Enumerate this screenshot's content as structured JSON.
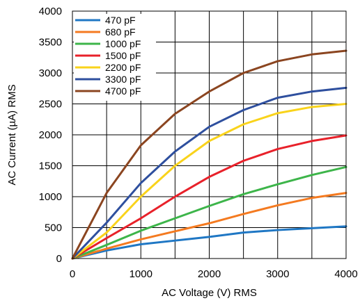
{
  "chart_data": {
    "type": "line",
    "title": "",
    "xlabel": "AC Voltage (V) RMS",
    "ylabel": "AC Current (µA) RMS",
    "xlim": [
      0,
      4000
    ],
    "ylim": [
      0,
      4000
    ],
    "xticks": [
      0,
      1000,
      2000,
      3000,
      4000
    ],
    "yticks": [
      0,
      500,
      1000,
      1500,
      2000,
      2500,
      3000,
      3500,
      4000
    ],
    "grid": true,
    "legend_position": "top-left",
    "x": [
      0,
      500,
      1000,
      1500,
      2000,
      2500,
      3000,
      3500,
      4000
    ],
    "series": [
      {
        "name": "470 pF",
        "color": "#1f77c4",
        "values": [
          0,
          130,
          230,
          290,
          350,
          420,
          460,
          490,
          520
        ]
      },
      {
        "name": "680 pF",
        "color": "#f47a20",
        "values": [
          0,
          160,
          310,
          440,
          570,
          720,
          860,
          980,
          1060
        ]
      },
      {
        "name": "1000 pF",
        "color": "#3db54a",
        "values": [
          0,
          220,
          450,
          650,
          850,
          1040,
          1200,
          1350,
          1480
        ]
      },
      {
        "name": "1500 pF",
        "color": "#e8212a",
        "values": [
          0,
          330,
          650,
          1000,
          1320,
          1580,
          1770,
          1900,
          1990
        ]
      },
      {
        "name": "2200 pF",
        "color": "#f9d31b",
        "values": [
          0,
          420,
          1000,
          1500,
          1900,
          2170,
          2350,
          2450,
          2500
        ]
      },
      {
        "name": "3300 pF",
        "color": "#2e4f9e",
        "values": [
          0,
          580,
          1220,
          1730,
          2130,
          2400,
          2600,
          2700,
          2760
        ]
      },
      {
        "name": "4700 pF",
        "color": "#8b4520",
        "values": [
          0,
          1060,
          1830,
          2340,
          2700,
          3000,
          3190,
          3300,
          3360
        ]
      }
    ]
  }
}
